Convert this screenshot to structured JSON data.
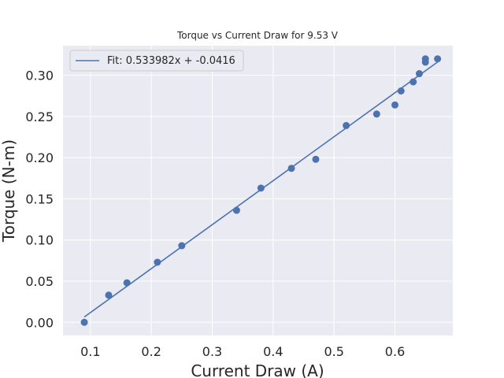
{
  "chart_data": {
    "type": "scatter",
    "title": "Torque vs Current Draw for 9.53 V",
    "xlabel": "Current Draw (A)",
    "ylabel": "Torque (N-m)",
    "xlim": [
      0.055,
      0.695
    ],
    "ylim": [
      -0.016,
      0.336
    ],
    "xticks": [
      0.1,
      0.2,
      0.3,
      0.4,
      0.5,
      0.6
    ],
    "yticks": [
      0.0,
      0.05,
      0.1,
      0.15,
      0.2,
      0.25,
      0.3
    ],
    "xtick_labels": [
      "0.1",
      "0.2",
      "0.3",
      "0.4",
      "0.5",
      "0.6"
    ],
    "ytick_labels": [
      "0.00",
      "0.05",
      "0.10",
      "0.15",
      "0.20",
      "0.25",
      "0.30"
    ],
    "grid": true,
    "legend_position": "top-left",
    "colors": {
      "series": "#4c72b0",
      "background": "#eaeaf2",
      "grid": "#ffffff"
    },
    "series": [
      {
        "type": "scatter",
        "points": [
          {
            "x": 0.09,
            "y": 0.0
          },
          {
            "x": 0.13,
            "y": 0.033
          },
          {
            "x": 0.16,
            "y": 0.048
          },
          {
            "x": 0.21,
            "y": 0.073
          },
          {
            "x": 0.25,
            "y": 0.093
          },
          {
            "x": 0.34,
            "y": 0.136
          },
          {
            "x": 0.38,
            "y": 0.163
          },
          {
            "x": 0.43,
            "y": 0.187
          },
          {
            "x": 0.47,
            "y": 0.198
          },
          {
            "x": 0.52,
            "y": 0.239
          },
          {
            "x": 0.57,
            "y": 0.253
          },
          {
            "x": 0.6,
            "y": 0.264
          },
          {
            "x": 0.61,
            "y": 0.281
          },
          {
            "x": 0.63,
            "y": 0.292
          },
          {
            "x": 0.64,
            "y": 0.302
          },
          {
            "x": 0.65,
            "y": 0.316
          },
          {
            "x": 0.65,
            "y": 0.32
          },
          {
            "x": 0.67,
            "y": 0.32
          }
        ]
      },
      {
        "type": "line",
        "name": "Fit: 0.533982x + -0.0416",
        "slope": 0.533982,
        "intercept": -0.0416,
        "x_range": [
          0.09,
          0.67
        ]
      }
    ]
  }
}
